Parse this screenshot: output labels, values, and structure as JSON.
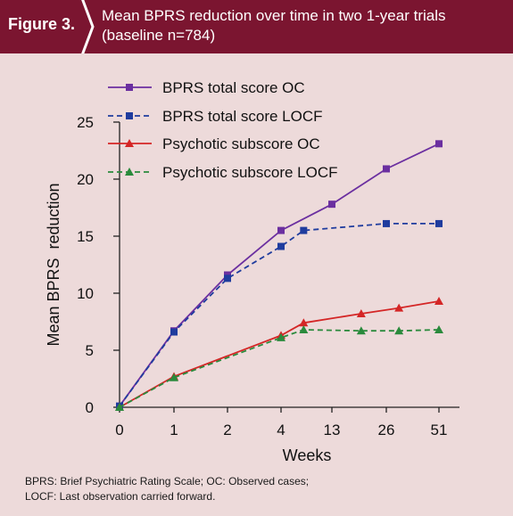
{
  "header": {
    "figure_label": "Figure 3.",
    "title_line1": "Mean BPRS reduction over time in two 1-year trials",
    "title_line2": "(baseline n=784)"
  },
  "colors": {
    "header_bg": "#7b1530",
    "background": "#eddada",
    "purple": "#6b2fa0",
    "blue": "#1f3c9e",
    "red": "#d42626",
    "green": "#2a8a3c"
  },
  "chart_data": {
    "type": "line",
    "xlabel": "Weeks",
    "ylabel": "Mean BPRS  reduction",
    "categories": [
      "0",
      "1",
      "2",
      "4",
      "13",
      "26",
      "51"
    ],
    "ylim": [
      0,
      25
    ],
    "yticks": [
      "0",
      "5",
      "10",
      "15",
      "20",
      "25"
    ],
    "grid": false,
    "legend_position": "top-left",
    "series": [
      {
        "name": "BPRS total score OC",
        "color": "#6b2fa0",
        "marker": "square",
        "dash": false,
        "x": [
          0,
          1,
          2,
          4,
          13,
          26,
          51
        ],
        "values": [
          0.1,
          6.7,
          11.6,
          15.5,
          17.8,
          20.9,
          23.1
        ]
      },
      {
        "name": "BPRS total score LOCF",
        "color": "#1f3c9e",
        "marker": "square",
        "dash": true,
        "x": [
          0,
          1,
          2,
          4,
          8,
          26,
          51
        ],
        "values": [
          0.1,
          6.6,
          11.3,
          14.1,
          15.5,
          16.1,
          16.1
        ]
      },
      {
        "name": "Psychotic subscore OC",
        "color": "#d42626",
        "marker": "triangle",
        "dash": false,
        "x": [
          0,
          1,
          4,
          8,
          20,
          32,
          51
        ],
        "values": [
          0.0,
          2.7,
          6.3,
          7.4,
          8.2,
          8.7,
          9.3
        ]
      },
      {
        "name": "Psychotic subscore LOCF",
        "color": "#2a8a3c",
        "marker": "triangle",
        "dash": true,
        "x": [
          0,
          1,
          4,
          8,
          20,
          32,
          51
        ],
        "values": [
          0.0,
          2.6,
          6.1,
          6.8,
          6.7,
          6.7,
          6.8
        ]
      }
    ]
  },
  "footnote": {
    "line1": "BPRS: Brief Psychiatric Rating Scale; OC: Observed cases;",
    "line2": "LOCF: Last observation carried forward."
  }
}
